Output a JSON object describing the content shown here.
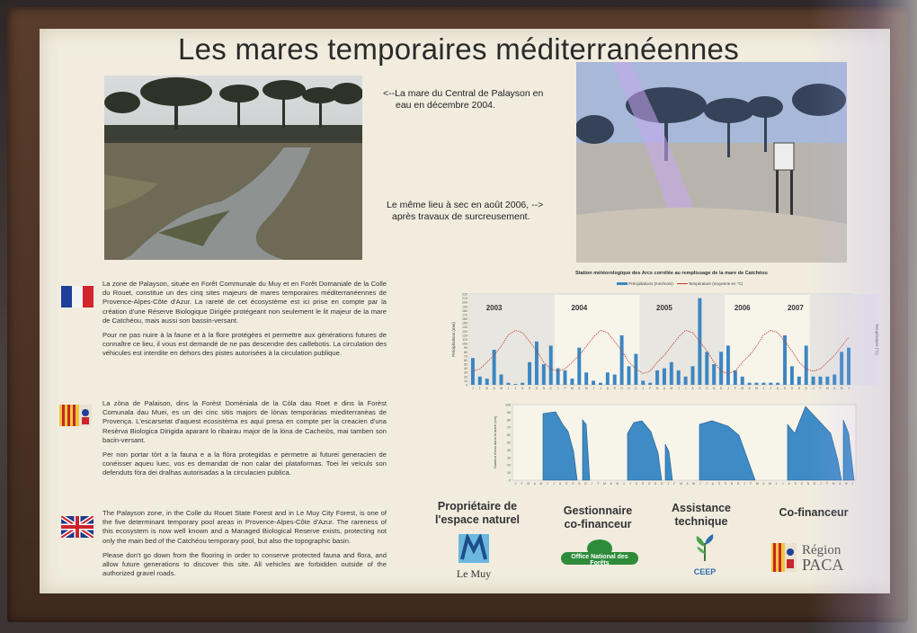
{
  "title": "Les mares temporaires méditerranéennes",
  "captions": {
    "wet": [
      "<--La mare du Central de Palayson en",
      "eau en décembre 2004."
    ],
    "dry": [
      "Le même lieu à sec en août 2006, -->",
      "après travaux de surcreusement."
    ]
  },
  "chart_caption": "Station météorologique des Arcs corrélée au remplissage de la mare de Catchéou",
  "chart_legend": {
    "precip": "Précipitations (mm/mois)",
    "temp": "Température (moyenne en °C)"
  },
  "chart_data": [
    {
      "type": "bar",
      "years": [
        "2003",
        "2004",
        "2005",
        "2006",
        "2007"
      ],
      "ylabel": "Précipitations (mm)",
      "y2label": "Température (°C)",
      "ylim": [
        0,
        220
      ],
      "yticks": [
        "220",
        "210",
        "200",
        "190",
        "180",
        "170",
        "160",
        "150",
        "140",
        "130",
        "120",
        "110",
        "100",
        "90",
        "80",
        "70",
        "60",
        "50",
        "40",
        "30",
        "20",
        "10",
        "0"
      ],
      "months": [
        "J",
        "F",
        "M",
        "A",
        "M",
        "J",
        "J",
        "A",
        "S",
        "O",
        "N",
        "D",
        "J",
        "F",
        "M",
        "A",
        "M",
        "J",
        "J",
        "A",
        "S",
        "O",
        "N",
        "D",
        "J",
        "F",
        "M",
        "A",
        "M",
        "J",
        "J",
        "A",
        "S",
        "O",
        "N",
        "D",
        "J",
        "F",
        "M",
        "A",
        "M",
        "J",
        "J",
        "A",
        "S",
        "O",
        "N",
        "D",
        "J",
        "F",
        "M",
        "A",
        "M",
        "J"
      ],
      "values": [
        65,
        20,
        15,
        85,
        25,
        5,
        2,
        5,
        55,
        105,
        50,
        95,
        40,
        35,
        15,
        90,
        30,
        10,
        5,
        30,
        25,
        120,
        45,
        75,
        10,
        5,
        35,
        40,
        55,
        35,
        20,
        45,
        210,
        80,
        50,
        80,
        95,
        35,
        20,
        5,
        5,
        5,
        5,
        5,
        120,
        45,
        20,
        95,
        20,
        20,
        20,
        25,
        80,
        90
      ],
      "temp": [
        6,
        7,
        10,
        13,
        17,
        22,
        24,
        23,
        19,
        15,
        10,
        7,
        6,
        7,
        10,
        13,
        17,
        21,
        24,
        23,
        19,
        15,
        10,
        7,
        5,
        6,
        10,
        13,
        17,
        21,
        24,
        23,
        19,
        15,
        10,
        6,
        5,
        6,
        10,
        13,
        17,
        22,
        24,
        23,
        19,
        15,
        10,
        7,
        6,
        7,
        10,
        13,
        17,
        21
      ]
    },
    {
      "type": "area",
      "ylabel": "Hauteur d'eau dans la mare (cm)",
      "yticks": [
        "100",
        "90",
        "80",
        "70",
        "60",
        "50",
        "40",
        "30",
        "20",
        "10",
        "0"
      ],
      "ylim": [
        0,
        100
      ],
      "note": "water level seasonal fills"
    }
  ],
  "partners": [
    {
      "head": [
        "Propriétaire de",
        "l'espace naturel"
      ],
      "logo": "Le Muy"
    },
    {
      "head": [
        "Gestionnaire",
        "co-financeur"
      ],
      "logo": "Office National des Forêts"
    },
    {
      "head": [
        "Assistance",
        "technique"
      ],
      "logo": "CEEP"
    },
    {
      "head": [
        "Co-financeur"
      ],
      "logo": [
        "Région",
        "PACA"
      ]
    }
  ],
  "texts": {
    "fr": [
      "La zone de Palayson, située en Forêt Communale du Muy et en Forêt Domaniale de la Colle du Rouet, constitue un des cinq sites majeurs de mares temporaires méditerranéennes de Provence-Alpes-Côte d'Azur. La rareté de cet écosystème est ici prise en compte par la création d'une Réserve Biologique Dirigée protégeant non seulement le lit majeur de la mare de Catchéou, mais aussi son bassin-versant.",
      "Pour ne pas nuire à la faune et à la flore protégées et permettre aux générations futures de connaître ce lieu, il vous est demandé de ne pas descendre des caillebotis. La circulation des véhicules est interdite en dehors des pistes autorisées à la circulation publique."
    ],
    "oc": [
      "La zòna de Palaison, dins la Forèst Domèniala de la Còla dau Roet e dins la Forèst Comunala dau Muei, es un dei cinc sitis majors de lònas temporàrias miediterranèas de Provença. L'escarsetat d'aquest ecosistèma es aquí presa en compte per la creacien d'una Resèrva Biologica Dirigida aparant lo ribairau major de la lòna de Cacheiòs, mai tamben son bacin-versant.",
      "Per non portar tòrt a la fauna e a la flòra protegidas e permetre ai futurei generacien de conéisser aqueu luec, vos es demandat de non calar dei plataformas. Toei lei veïculs son defenduts fòra dei dralhas autorisadas a la circulacien publica."
    ],
    "en": [
      "The Palayson zone, in the Colle du Rouet State Forest and in Le Muy City Forest, is one of the five determinant temporary pool areas in Provence-Alpes-Côte d'Azur. The rareness of this ecosystem is now well known and a Managed Biological Reserve exists, protecting not only the main bed of the Catchéou temporary pool, but also the topographic basin.",
      "Please don't go down from the flooring in order to conserve protected fauna and flora, and allow future generations to discover this site. All vehicles are forbidden outside of the authorized gravel roads."
    ]
  },
  "colors": {
    "bar": "#3b86c2",
    "temp": "#c0392b",
    "panel": "#f1ecde",
    "onf": "#2e8b3a"
  },
  "icons": {
    "fr": "french-flag-icon",
    "oc": "provence-flag-icon",
    "en": "uk-flag-icon"
  }
}
